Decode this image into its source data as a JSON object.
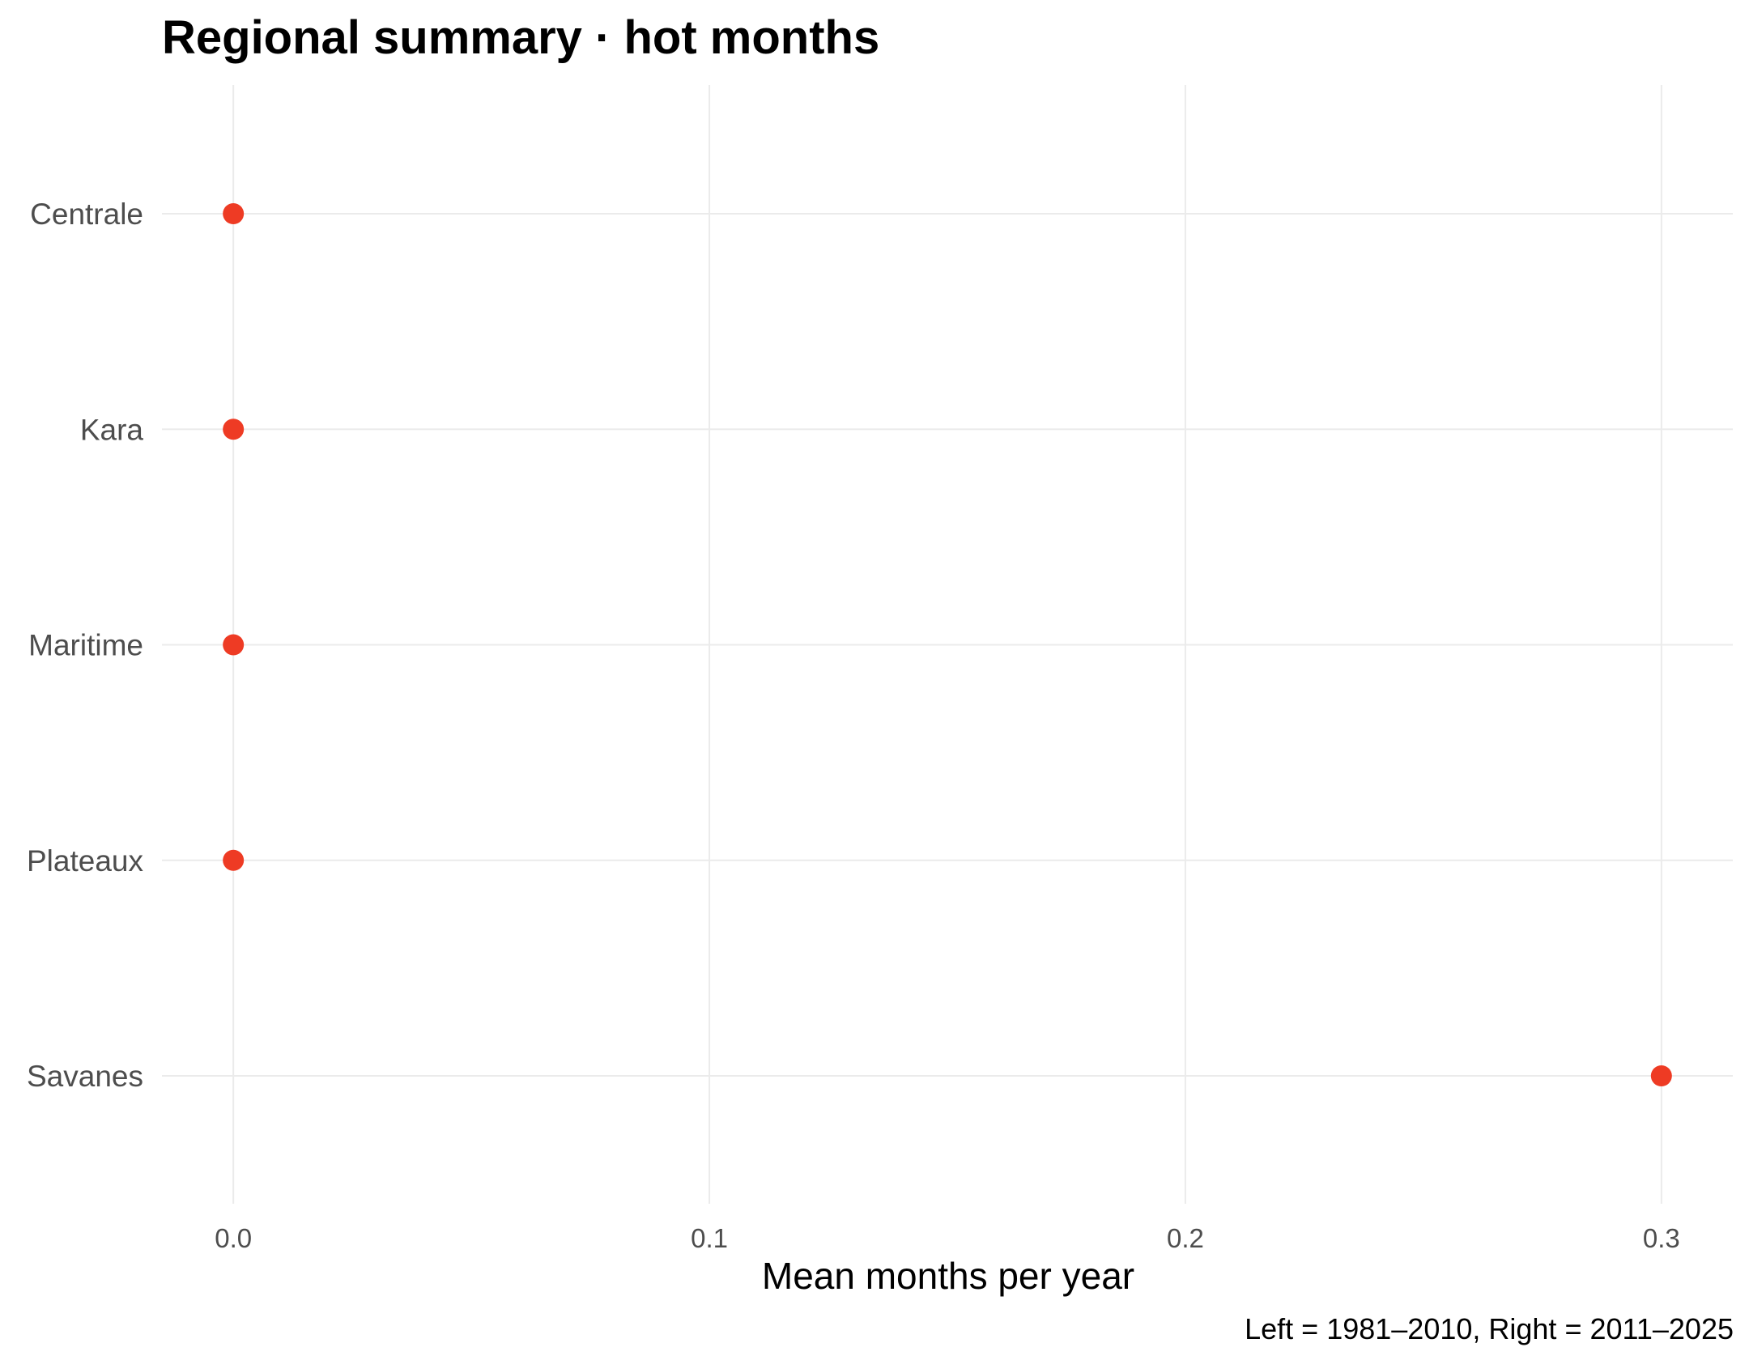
{
  "chart_data": {
    "type": "scatter",
    "title": "Regional summary · hot months",
    "xlabel": "Mean months per year",
    "ylabel": "",
    "caption": "Left = 1981–2010, Right = 2011–2025",
    "categories": [
      "Centrale",
      "Kara",
      "Maritime",
      "Plateaux",
      "Savanes"
    ],
    "x_ticks": [
      "0.0",
      "0.1",
      "0.2",
      "0.3"
    ],
    "x_tick_values": [
      0.0,
      0.1,
      0.2,
      0.3
    ],
    "xlim": [
      -0.015,
      0.315
    ],
    "grid": true,
    "legend": "none",
    "point_color": "#EE3B24",
    "series": [
      {
        "values": [
          0.0,
          0.0,
          0.0,
          0.0,
          0.3
        ]
      }
    ]
  }
}
